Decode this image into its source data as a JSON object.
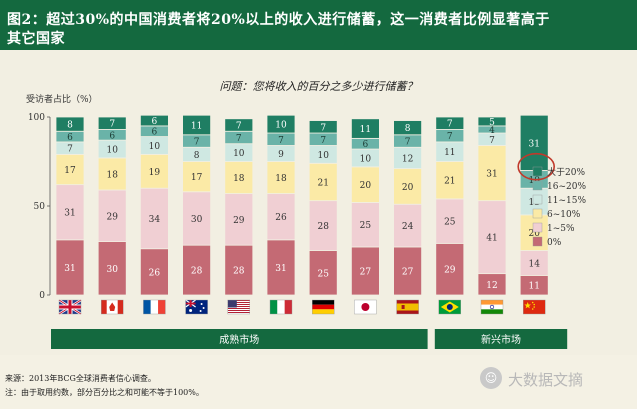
{
  "header": {
    "title_line1": "图2：超过30%的中国消费者将20%以上的收入进行储蓄，这一消费者比例显著高于",
    "title_line2": "其它国家"
  },
  "chart_data": {
    "type": "bar",
    "stacked": true,
    "title": "问题：您将收入的百分之多少进行储蓄？",
    "ylabel": "受访者占比（%）",
    "ylim": [
      0,
      100
    ],
    "yticks": [
      0,
      50,
      100
    ],
    "categories": [
      "英国",
      "加拿大",
      "法国",
      "澳大利亚",
      "美国",
      "意大利",
      "德国",
      "日本",
      "西班牙",
      "巴西",
      "印度",
      "中国"
    ],
    "series": [
      {
        "name": "0%",
        "values": [
          31,
          30,
          26,
          28,
          28,
          31,
          25,
          27,
          27,
          29,
          12,
          11
        ]
      },
      {
        "name": "1~5%",
        "values": [
          31,
          29,
          34,
          30,
          29,
          26,
          28,
          25,
          24,
          25,
          41,
          14
        ]
      },
      {
        "name": "6~10%",
        "values": [
          17,
          18,
          19,
          17,
          18,
          18,
          21,
          20,
          20,
          21,
          31,
          20
        ]
      },
      {
        "name": "11~15%",
        "values": [
          7,
          10,
          10,
          8,
          10,
          9,
          10,
          10,
          12,
          11,
          7,
          15
        ]
      },
      {
        "name": "16~20%",
        "values": [
          6,
          6,
          6,
          7,
          7,
          7,
          7,
          6,
          7,
          7,
          4,
          10
        ]
      },
      {
        "name": "大于20%",
        "values": [
          8,
          7,
          6,
          11,
          7,
          10,
          7,
          11,
          8,
          7,
          5,
          31
        ]
      }
    ],
    "legend_order": [
      "大于20%",
      "16~20%",
      "11~15%",
      "6~10%",
      "1~5%",
      "0%"
    ],
    "legend_position": "right",
    "highlight": {
      "category": "中国",
      "series": "大于20%",
      "value": 31
    },
    "groups": [
      {
        "label": "成熟市场",
        "categories": [
          "英国",
          "加拿大",
          "法国",
          "澳大利亚",
          "美国",
          "意大利",
          "德国",
          "日本",
          "西班牙"
        ]
      },
      {
        "label": "新兴市场",
        "categories": [
          "巴西",
          "印度",
          "中国"
        ]
      }
    ]
  },
  "colors": {
    "title_bg": "#14693f",
    "series": [
      "#c46a74",
      "#f0cfd3",
      "#fbeaa6",
      "#cfe8e2",
      "#6ab3a8",
      "#1f7e63"
    ],
    "group_bar": "#14693f",
    "highlight_circle": "#c0392b"
  },
  "flags": [
    "uk-flag",
    "canada-flag",
    "france-flag",
    "australia-flag",
    "usa-flag",
    "italy-flag",
    "germany-flag",
    "japan-flag",
    "spain-flag",
    "brazil-flag",
    "india-flag",
    "china-flag"
  ],
  "footer": {
    "source": "来源：2013年BCG全球消费者信心调查。",
    "note": "注：由于取用约数，部分百分比之和可能不等于100%。"
  },
  "watermark": {
    "text": "大数据文摘"
  }
}
